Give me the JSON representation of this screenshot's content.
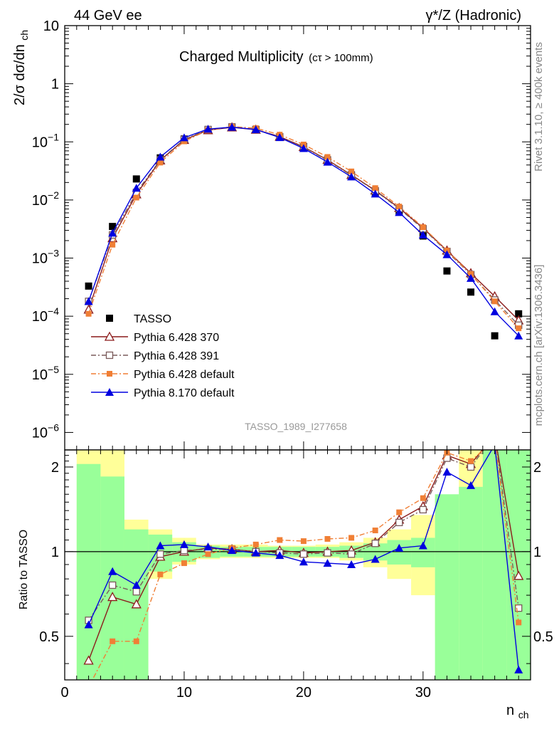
{
  "header": {
    "left": "44 GeV ee",
    "right": "γ*/Z (Hadronic)"
  },
  "side_text": {
    "rivet": "Rivet 3.1.10, ≥ 400k events",
    "mcplots": "mcplots.cern.ch [arXiv:1306.3436]"
  },
  "chart_data": [
    {
      "type": "scatter",
      "title": "Charged Multiplicity",
      "title_suffix": "(cτ > 100mm)",
      "ylabel": "2/σ dσ/dn",
      "ylabel_sub": "ch",
      "ylog": true,
      "ylim": [
        5e-07,
        10
      ],
      "xlim": [
        0,
        39
      ],
      "yticks": [
        "10⁻⁶",
        "10⁻⁵",
        "10⁻⁴",
        "10⁻³",
        "10⁻²",
        "10⁻¹",
        "1",
        "10"
      ],
      "watermark": "TASSO_1989_I277658",
      "legend_placement": "lower-left",
      "series": [
        {
          "name": "TASSO",
          "color": "#000000",
          "marker": "filled-square",
          "x": [
            2,
            4,
            6,
            8,
            10,
            12,
            14,
            16,
            18,
            20,
            22,
            24,
            26,
            28,
            30,
            32,
            34,
            36,
            38
          ],
          "y": [
            0.00033,
            0.0035,
            0.023,
            0.053,
            0.112,
            0.163,
            0.178,
            0.163,
            0.122,
            0.083,
            0.049,
            0.027,
            0.0135,
            0.0062,
            0.0024,
            0.0006,
            0.00026,
            4.6e-05,
            0.00011
          ]
        },
        {
          "name": "Pythia 6.428 370",
          "color": "#8b1a1a",
          "marker": "open-triangle",
          "line": "solid",
          "x": [
            2,
            4,
            6,
            8,
            10,
            12,
            14,
            16,
            18,
            20,
            22,
            24,
            26,
            28,
            30,
            32,
            34,
            36,
            38
          ],
          "y": [
            0.00013,
            0.0022,
            0.0125,
            0.048,
            0.108,
            0.159,
            0.178,
            0.162,
            0.123,
            0.082,
            0.049,
            0.027,
            0.0146,
            0.0073,
            0.0033,
            0.00135,
            0.00055,
            0.00022,
            8.5e-05
          ]
        },
        {
          "name": "Pythia 6.428 391",
          "color": "#7a5a5a",
          "marker": "open-square",
          "line": "dash-dot",
          "x": [
            2,
            4,
            6,
            8,
            10,
            12,
            14,
            16,
            18,
            20,
            22,
            24,
            26,
            28,
            30,
            32,
            34,
            36,
            38
          ],
          "y": [
            0.00018,
            0.0025,
            0.0135,
            0.049,
            0.11,
            0.163,
            0.181,
            0.163,
            0.122,
            0.081,
            0.048,
            0.0265,
            0.0144,
            0.0071,
            0.0032,
            0.0013,
            0.00052,
            0.00019,
            7e-05
          ]
        },
        {
          "name": "Pythia 6.428 default",
          "color": "#f07f35",
          "marker": "filled-square-small",
          "line": "dash-dot",
          "x": [
            2,
            4,
            6,
            8,
            10,
            12,
            14,
            16,
            18,
            20,
            22,
            24,
            26,
            28,
            30,
            32,
            34,
            36,
            38
          ],
          "y": [
            0.00011,
            0.0017,
            0.011,
            0.044,
            0.102,
            0.159,
            0.183,
            0.172,
            0.133,
            0.09,
            0.055,
            0.031,
            0.016,
            0.0077,
            0.0034,
            0.00135,
            0.00053,
            0.00018,
            6.2e-05
          ]
        },
        {
          "name": "Pythia 8.170 default",
          "color": "#0000e0",
          "marker": "filled-triangle",
          "line": "solid",
          "x": [
            2,
            4,
            6,
            8,
            10,
            12,
            14,
            16,
            18,
            20,
            22,
            24,
            26,
            28,
            30,
            32,
            34,
            36,
            38
          ],
          "y": [
            0.00018,
            0.0027,
            0.016,
            0.055,
            0.118,
            0.166,
            0.179,
            0.163,
            0.119,
            0.077,
            0.045,
            0.025,
            0.0127,
            0.0061,
            0.0025,
            0.00115,
            0.00045,
            0.00012,
            4.6e-05
          ]
        }
      ]
    },
    {
      "type": "line",
      "ylabel": "Ratio to TASSO",
      "xlabel": "n",
      "xlabel_sub": "ch",
      "ylim": [
        0.35,
        2.3
      ],
      "xlim": [
        0,
        39
      ],
      "xticks": [
        0,
        10,
        20,
        30
      ],
      "yticks": [
        0.5,
        1,
        2
      ],
      "bands": {
        "edges": [
          1,
          3,
          5,
          7,
          9,
          11,
          13,
          15,
          17,
          19,
          21,
          23,
          25,
          27,
          29,
          31,
          33,
          35,
          37,
          39
        ],
        "green": [
          [
            0.2,
            2.05
          ],
          [
            0.2,
            1.85
          ],
          [
            0.2,
            1.2
          ],
          [
            0.85,
            1.15
          ],
          [
            0.92,
            1.08
          ],
          [
            0.95,
            1.05
          ],
          [
            0.96,
            1.04
          ],
          [
            0.96,
            1.04
          ],
          [
            0.96,
            1.04
          ],
          [
            0.96,
            1.04
          ],
          [
            0.96,
            1.04
          ],
          [
            0.95,
            1.05
          ],
          [
            0.93,
            1.07
          ],
          [
            0.9,
            1.1
          ],
          [
            0.88,
            1.12
          ],
          [
            0.3,
            1.6
          ],
          [
            0.3,
            1.7
          ],
          [
            0.3,
            2.4
          ],
          [
            0.3,
            2.4
          ]
        ],
        "yellow": [
          [
            0.2,
            2.4
          ],
          [
            0.2,
            2.4
          ],
          [
            0.2,
            1.3
          ],
          [
            0.8,
            1.2
          ],
          [
            0.9,
            1.12
          ],
          [
            0.94,
            1.06
          ],
          [
            0.95,
            1.06
          ],
          [
            0.95,
            1.06
          ],
          [
            0.95,
            1.05
          ],
          [
            0.95,
            1.05
          ],
          [
            0.95,
            1.06
          ],
          [
            0.93,
            1.08
          ],
          [
            0.88,
            1.12
          ],
          [
            0.8,
            1.2
          ],
          [
            0.7,
            1.35
          ],
          [
            0.5,
            1.55
          ],
          [
            0.3,
            2.4
          ],
          [
            0.3,
            2.4
          ],
          [
            0.3,
            2.4
          ]
        ]
      },
      "series": [
        {
          "name": "Pythia 6.428 370",
          "color": "#8b1a1a",
          "x": [
            2,
            4,
            6,
            8,
            10,
            12,
            14,
            16,
            18,
            20,
            22,
            24,
            26,
            28,
            30,
            32,
            34,
            36,
            38
          ],
          "y": [
            0.41,
            0.69,
            0.65,
            0.96,
            1.0,
            1.03,
            1.02,
            1.0,
            1.01,
            0.99,
            1.0,
            1.01,
            1.08,
            1.3,
            1.45,
            2.2,
            2.05,
            2.6,
            0.82
          ]
        },
        {
          "name": "Pythia 6.428 391",
          "color": "#7a5a5a",
          "x": [
            2,
            4,
            6,
            8,
            10,
            12,
            14,
            16,
            18,
            20,
            22,
            24,
            26,
            28,
            30,
            32,
            34,
            36,
            38
          ],
          "y": [
            0.57,
            0.76,
            0.72,
            0.98,
            1.01,
            1.02,
            1.02,
            1.0,
            0.99,
            0.98,
            0.99,
            0.98,
            1.07,
            1.27,
            1.41,
            2.15,
            2.0,
            2.6,
            0.63
          ]
        },
        {
          "name": "Pythia 6.428 default",
          "color": "#f07f35",
          "x": [
            2,
            4,
            6,
            8,
            10,
            12,
            14,
            16,
            18,
            20,
            22,
            24,
            26,
            28,
            30,
            32,
            34,
            36,
            38
          ],
          "y": [
            0.33,
            0.48,
            0.48,
            0.83,
            0.91,
            0.98,
            1.03,
            1.06,
            1.1,
            1.09,
            1.11,
            1.12,
            1.19,
            1.38,
            1.55,
            2.25,
            2.1,
            2.5,
            0.56
          ]
        },
        {
          "name": "Pythia 8.170 default",
          "color": "#0000e0",
          "x": [
            2,
            4,
            6,
            8,
            10,
            12,
            14,
            16,
            18,
            20,
            22,
            24,
            26,
            28,
            30,
            32,
            34,
            36,
            38
          ],
          "y": [
            0.55,
            0.85,
            0.76,
            1.05,
            1.06,
            1.04,
            1.01,
            0.99,
            0.97,
            0.92,
            0.91,
            0.9,
            0.94,
            1.03,
            1.05,
            1.92,
            1.72,
            2.4,
            0.38
          ]
        }
      ]
    }
  ]
}
